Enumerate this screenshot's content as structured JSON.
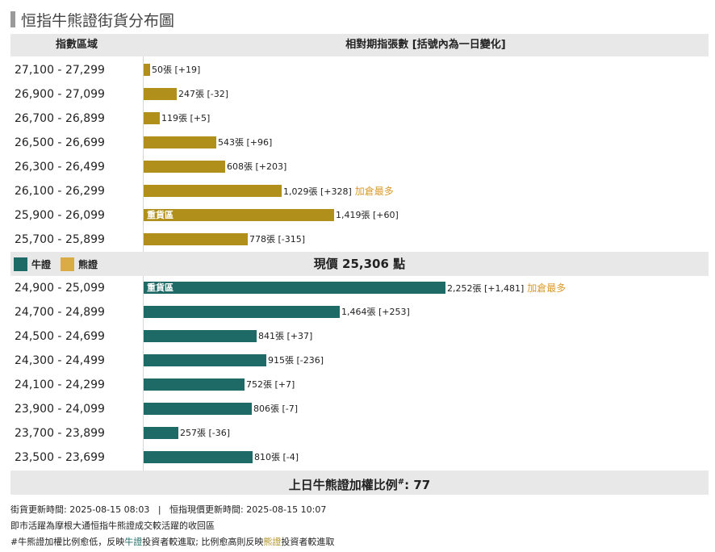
{
  "title": "恒指牛熊證街貨分布圖",
  "header": {
    "range_col": "指數區域",
    "count_col": "相對期指張數 [括號內為一日變化]"
  },
  "legend": {
    "bull": "牛證",
    "bear": "熊證"
  },
  "current_price": {
    "label": "現價",
    "value": "25,306",
    "unit": "點"
  },
  "ratio": {
    "label": "上日牛熊證加權比例",
    "mark": "#",
    "value": "77"
  },
  "notes": {
    "update_line": "街貨更新時間: 2025-08-15 08:03   |   恒指現價更新時間: 2025-08-15 10:07",
    "line2": "即市活躍為摩根大通恒指牛熊證成交較活躍的收回區",
    "line3_prefix": "#牛熊證加權比例愈低，反映",
    "line3_bull": "牛證",
    "line3_mid": "投資者較進取; 比例愈高則反映",
    "line3_bear": "熊證",
    "line3_suffix": "投資者較進取"
  },
  "colors": {
    "bull": "#1e6a66",
    "bear": "#b08f1b",
    "bear_legend": "#d9ac45",
    "note": "#d99a2b",
    "band": "#e8e8e8"
  },
  "chart_data": {
    "type": "bar",
    "orientation": "horizontal",
    "unit": "張",
    "max_value": 2252,
    "series": [
      {
        "name": "熊證",
        "categories": [
          "27,100 - 27,299",
          "26,900 - 27,099",
          "26,700 - 26,899",
          "26,500 - 26,699",
          "26,300 - 26,499",
          "26,100 - 26,299",
          "25,900 - 26,099",
          "25,700 - 25,899"
        ],
        "values": [
          50,
          247,
          119,
          543,
          608,
          1029,
          1419,
          778
        ],
        "value_labels": [
          "50",
          "247",
          "119",
          "543",
          "608",
          "1,029",
          "1,419",
          "778"
        ],
        "changes": [
          "+19",
          "-32",
          "+5",
          "+96",
          "+203",
          "+328",
          "+60",
          "-315"
        ],
        "notes": [
          "",
          "",
          "",
          "",
          "",
          "加倉最多",
          "",
          ""
        ],
        "tags": [
          "",
          "",
          "",
          "",
          "",
          "",
          "重貨區",
          ""
        ]
      },
      {
        "name": "牛證",
        "categories": [
          "24,900 - 25,099",
          "24,700 - 24,899",
          "24,500 - 24,699",
          "24,300 - 24,499",
          "24,100 - 24,299",
          "23,900 - 24,099",
          "23,700 - 23,899",
          "23,500 - 23,699"
        ],
        "values": [
          2252,
          1464,
          841,
          915,
          752,
          806,
          257,
          810
        ],
        "value_labels": [
          "2,252",
          "1,464",
          "841",
          "915",
          "752",
          "806",
          "257",
          "810"
        ],
        "changes": [
          "+1,481",
          "+253",
          "+37",
          "-236",
          "+7",
          "-7",
          "-36",
          "-4"
        ],
        "notes": [
          "加倉最多",
          "",
          "",
          "",
          "",
          "",
          "",
          ""
        ],
        "tags": [
          "重貨區",
          "",
          "",
          "",
          "",
          "",
          "",
          ""
        ]
      }
    ]
  }
}
